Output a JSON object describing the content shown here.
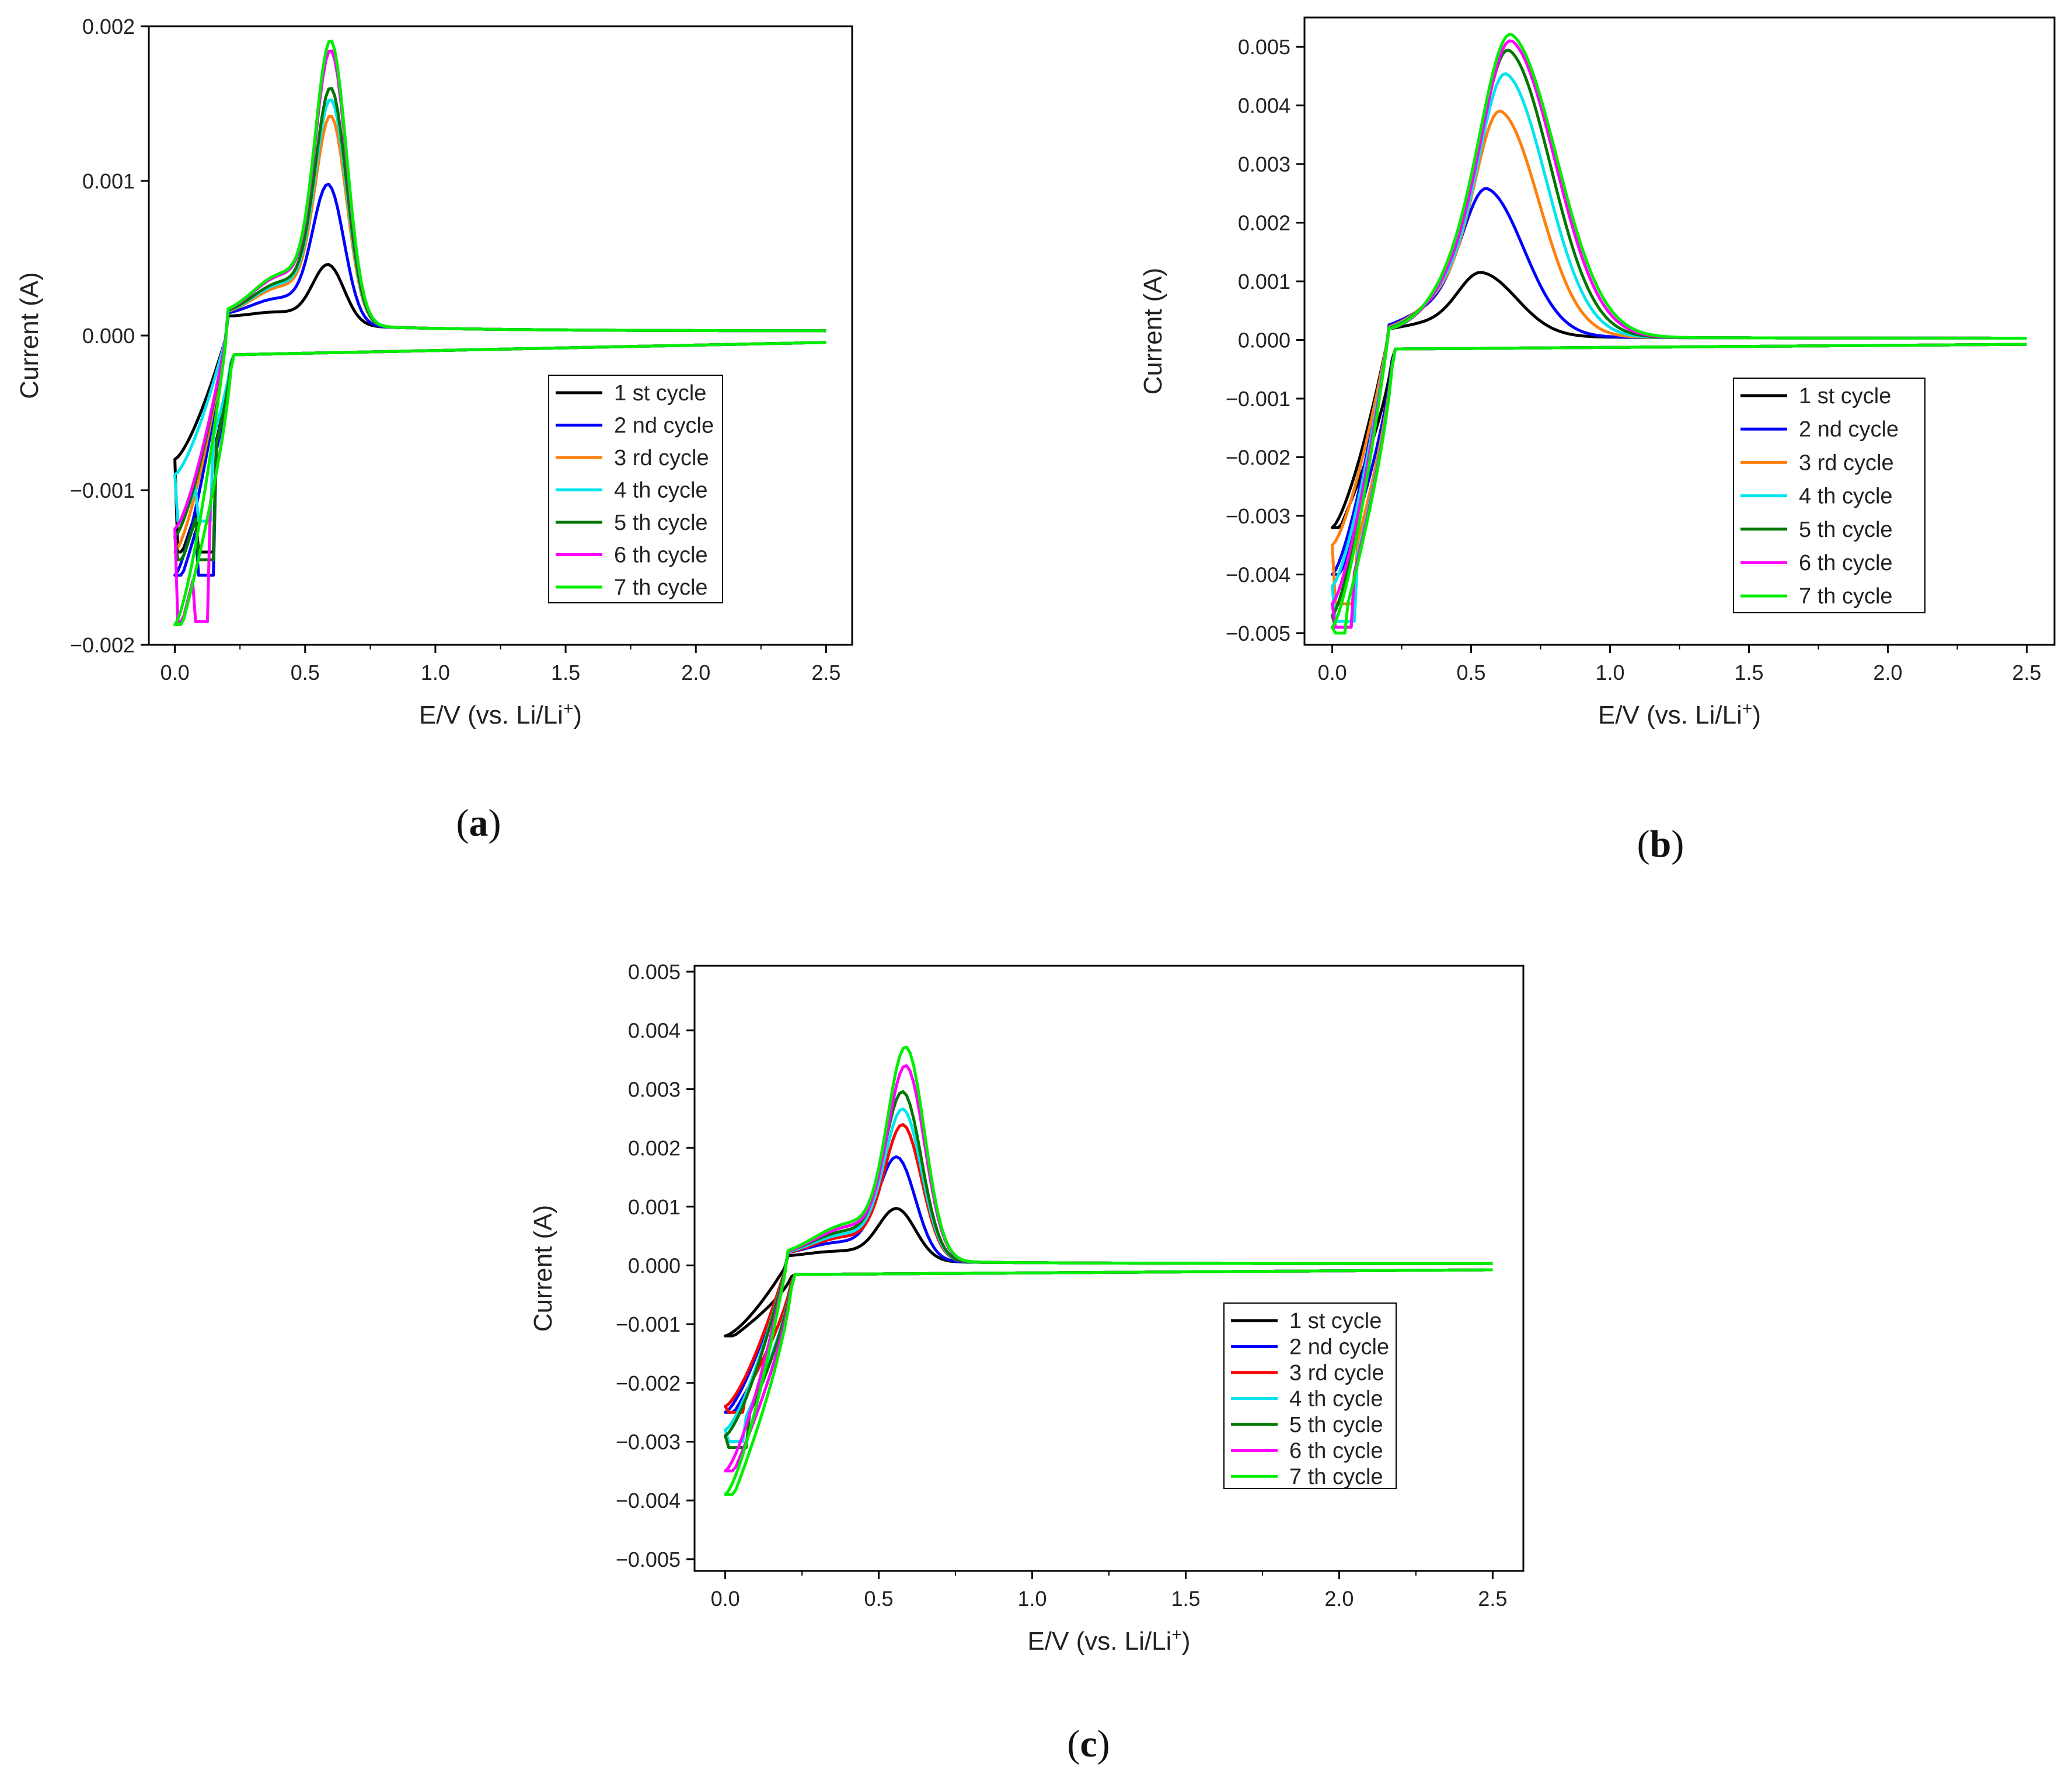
{
  "chart_data": [
    {
      "panel": "a",
      "type": "line",
      "title": "",
      "xlabel": "E/V (vs. Li/Li",
      "xlabel_sup": "+",
      "xlabel_end": ")",
      "ylabel": "Current (A)",
      "xlim": [
        -0.1,
        2.6
      ],
      "ylim": [
        -0.002,
        0.002
      ],
      "xticks": [
        0.0,
        0.5,
        1.0,
        1.5,
        2.0,
        2.5
      ],
      "xtick_labels": [
        "0.0",
        "0.5",
        "1.0",
        "1.5",
        "2.0",
        "2.5"
      ],
      "yticks": [
        -0.002,
        -0.001,
        0.0,
        0.001,
        0.002
      ],
      "ytick_labels": [
        "−0.002",
        "−0.001",
        "0.000",
        "0.001",
        "0.002"
      ],
      "legend_position": "center-right",
      "series": [
        {
          "name": "1 st cycle",
          "color": "#000000",
          "peak_ox": 0.00037,
          "peak_x": 0.59,
          "cath_min": -0.0014,
          "cath_x": 0.12,
          "start": -0.0008
        },
        {
          "name": "2 nd cycle",
          "color": "#0000ff",
          "peak_ox": 0.00086,
          "peak_x": 0.59,
          "cath_min": -0.00155,
          "cath_x": 0.12,
          "start": -0.00155
        },
        {
          "name": "3 rd cycle",
          "color": "#ff7f0e",
          "peak_ox": 0.00128,
          "peak_x": 0.6,
          "cath_min": -0.00145,
          "cath_x": 0.12,
          "start": -0.0014
        },
        {
          "name": "4 th cycle",
          "color": "#00e5ee",
          "peak_ox": 0.00138,
          "peak_x": 0.6,
          "cath_min": -0.0012,
          "cath_x": 0.11,
          "start": -0.0009
        },
        {
          "name": "5 th cycle",
          "color": "#007700",
          "peak_ox": 0.00145,
          "peak_x": 0.6,
          "cath_min": -0.00145,
          "cath_x": 0.12,
          "start": -0.0013
        },
        {
          "name": "6 th cycle",
          "color": "#ff00ff",
          "peak_ox": 0.00168,
          "peak_x": 0.6,
          "cath_min": -0.00185,
          "cath_x": 0.1,
          "start": -0.00125
        },
        {
          "name": "7 th cycle",
          "color": "#00ee00",
          "peak_ox": 0.00174,
          "peak_x": 0.6,
          "cath_min": -0.00187,
          "cath_x": 0.0,
          "start": -0.00187
        }
      ]
    },
    {
      "panel": "b",
      "type": "line",
      "title": "",
      "xlabel": "E/V (vs. Li/Li",
      "xlabel_sup": "+",
      "xlabel_end": ")",
      "ylabel": "Current (A)",
      "xlim": [
        -0.1,
        2.6
      ],
      "ylim": [
        -0.0052,
        0.0055
      ],
      "xticks": [
        0.0,
        0.5,
        1.0,
        1.5,
        2.0,
        2.5
      ],
      "xtick_labels": [
        "0.0",
        "0.5",
        "1.0",
        "1.5",
        "2.0",
        "2.5"
      ],
      "yticks": [
        -0.005,
        -0.004,
        -0.003,
        -0.002,
        -0.001,
        0.0,
        0.001,
        0.002,
        0.003,
        0.004,
        0.005
      ],
      "ytick_labels": [
        "−0.005",
        "−0.004",
        "−0.003",
        "−0.002",
        "−0.001",
        "0.000",
        "0.001",
        "0.002",
        "0.003",
        "0.004",
        "0.005"
      ],
      "legend_position": "center-right",
      "series": [
        {
          "name": "1 st cycle",
          "color": "#000000",
          "peak_ox": 0.00102,
          "peak_x": 0.54,
          "cath_min": -0.0032,
          "cath_x": 0.0,
          "start": -0.0032
        },
        {
          "name": "2 nd cycle",
          "color": "#0000ff",
          "peak_ox": 0.00237,
          "peak_x": 0.56,
          "cath_min": -0.004,
          "cath_x": 0.0,
          "start": -0.004
        },
        {
          "name": "3 rd cycle",
          "color": "#ff7f0e",
          "peak_ox": 0.00362,
          "peak_x": 0.61,
          "cath_min": -0.0045,
          "cath_x": 0.06,
          "start": -0.0035
        },
        {
          "name": "4 th cycle",
          "color": "#00e5ee",
          "peak_ox": 0.00422,
          "peak_x": 0.63,
          "cath_min": -0.0048,
          "cath_x": 0.05,
          "start": -0.0042
        },
        {
          "name": "5 th cycle",
          "color": "#007700",
          "peak_ox": 0.0046,
          "peak_x": 0.64,
          "cath_min": -0.0049,
          "cath_x": 0.04,
          "start": -0.0047
        },
        {
          "name": "6 th cycle",
          "color": "#ff00ff",
          "peak_ox": 0.00475,
          "peak_x": 0.65,
          "cath_min": -0.0049,
          "cath_x": 0.04,
          "start": -0.0045
        },
        {
          "name": "7 th cycle",
          "color": "#00ee00",
          "peak_ox": 0.00485,
          "peak_x": 0.65,
          "cath_min": -0.005,
          "cath_x": 0.02,
          "start": -0.0049
        }
      ]
    },
    {
      "panel": "c",
      "type": "line",
      "title": "",
      "xlabel": "E/V (vs. Li/Li",
      "xlabel_sup": "+",
      "xlabel_end": ")",
      "ylabel": "Current (A)",
      "xlim": [
        -0.1,
        2.6
      ],
      "ylim": [
        -0.0052,
        0.0051
      ],
      "xticks": [
        0.0,
        0.5,
        1.0,
        1.5,
        2.0,
        2.5
      ],
      "xtick_labels": [
        "0.0",
        "0.5",
        "1.0",
        "1.5",
        "2.0",
        "2.5"
      ],
      "yticks": [
        -0.005,
        -0.004,
        -0.003,
        -0.002,
        -0.001,
        0.0,
        0.001,
        0.002,
        0.003,
        0.004,
        0.005
      ],
      "ytick_labels": [
        "−0.005",
        "−0.004",
        "−0.003",
        "−0.002",
        "−0.001",
        "0.000",
        "0.001",
        "0.002",
        "0.003",
        "0.004",
        "0.005"
      ],
      "legend_position": "center-right",
      "series": [
        {
          "name": "1 st cycle",
          "color": "#000000",
          "peak_ox": 0.00085,
          "peak_x": 0.56,
          "cath_min": -0.0012,
          "cath_x": 0.0,
          "start": -0.0012
        },
        {
          "name": "2 nd cycle",
          "color": "#0000ff",
          "peak_ox": 0.00168,
          "peak_x": 0.56,
          "cath_min": -0.0025,
          "cath_x": 0.0,
          "start": -0.0025
        },
        {
          "name": "3 rd cycle",
          "color": "#ff0000",
          "peak_ox": 0.0022,
          "peak_x": 0.58,
          "cath_min": -0.0025,
          "cath_x": 0.03,
          "start": -0.0024
        },
        {
          "name": "4 th cycle",
          "color": "#00e5ee",
          "peak_ox": 0.00245,
          "peak_x": 0.58,
          "cath_min": -0.003,
          "cath_x": 0.03,
          "start": -0.0028
        },
        {
          "name": "5 th cycle",
          "color": "#007700",
          "peak_ox": 0.00273,
          "peak_x": 0.58,
          "cath_min": -0.0031,
          "cath_x": 0.04,
          "start": -0.0029
        },
        {
          "name": "6 th cycle",
          "color": "#ff00ff",
          "peak_ox": 0.00315,
          "peak_x": 0.59,
          "cath_min": -0.0035,
          "cath_x": 0.0,
          "start": -0.0035
        },
        {
          "name": "7 th cycle",
          "color": "#00ee00",
          "peak_ox": 0.00345,
          "peak_x": 0.59,
          "cath_min": -0.0039,
          "cath_x": 0.0,
          "start": -0.0039
        }
      ]
    }
  ],
  "panel_labels": [
    {
      "open": "(",
      "letter": "a",
      "close": ")"
    },
    {
      "open": "(",
      "letter": "b",
      "close": ")"
    },
    {
      "open": "(",
      "letter": "c",
      "close": ")"
    }
  ]
}
